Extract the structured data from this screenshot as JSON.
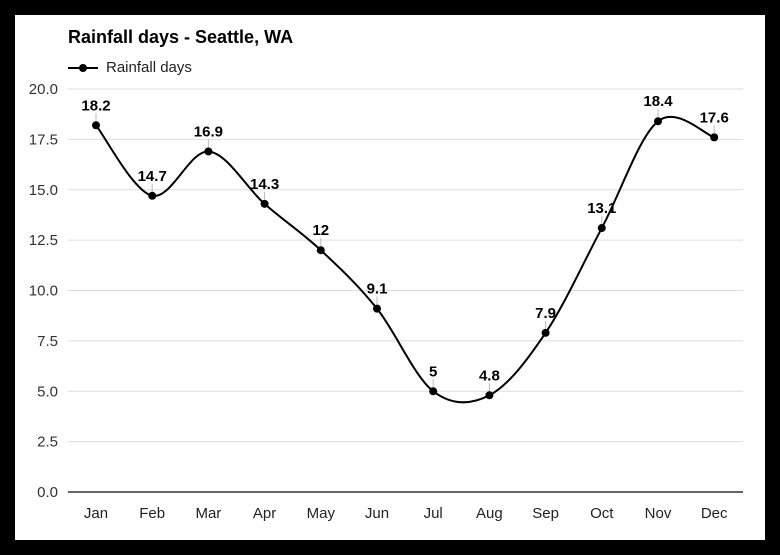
{
  "chart_data": {
    "type": "line",
    "title": "Rainfall days - Seattle, WA",
    "categories": [
      "Jan",
      "Feb",
      "Mar",
      "Apr",
      "May",
      "Jun",
      "Jul",
      "Aug",
      "Sep",
      "Oct",
      "Nov",
      "Dec"
    ],
    "series": [
      {
        "name": "Rainfall days",
        "values": [
          18.2,
          14.7,
          16.9,
          14.3,
          12,
          9.1,
          5,
          4.8,
          7.9,
          13.1,
          18.4,
          17.6
        ],
        "color": "#000000"
      }
    ],
    "value_labels": [
      "18.2",
      "14.7",
      "16.9",
      "14.3",
      "12",
      "9.1",
      "5",
      "4.8",
      "7.9",
      "13.1",
      "18.4",
      "17.6"
    ],
    "yticks": [
      "0.0",
      "2.5",
      "5.0",
      "7.5",
      "10.0",
      "12.5",
      "15.0",
      "17.5",
      "20.0"
    ],
    "ylim": [
      0,
      20
    ],
    "grid": true,
    "legend_position": "top-left",
    "xlabel": "",
    "ylabel": ""
  }
}
